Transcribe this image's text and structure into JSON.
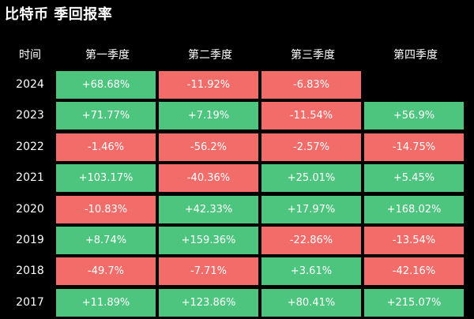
{
  "title": "比特币 季回报率",
  "colors": {
    "positive": "#4dc57f",
    "negative": "#f26c6a",
    "background": "#000000"
  },
  "chart_data": {
    "type": "table",
    "title": "比特币 季回报率",
    "columns": [
      "时间",
      "第一季度",
      "第二季度",
      "第三季度",
      "第四季度"
    ],
    "rows": [
      {
        "year": "2024",
        "values": [
          "+68.68%",
          "-11.92%",
          "-6.83%",
          ""
        ]
      },
      {
        "year": "2023",
        "values": [
          "+71.77%",
          "+7.19%",
          "-11.54%",
          "+56.9%"
        ]
      },
      {
        "year": "2022",
        "values": [
          "-1.46%",
          "-56.2%",
          "-2.57%",
          "-14.75%"
        ]
      },
      {
        "year": "2021",
        "values": [
          "+103.17%",
          "-40.36%",
          "+25.01%",
          "+5.45%"
        ]
      },
      {
        "year": "2020",
        "values": [
          "-10.83%",
          "+42.33%",
          "+17.97%",
          "+168.02%"
        ]
      },
      {
        "year": "2019",
        "values": [
          "+8.74%",
          "+159.36%",
          "-22.86%",
          "-13.54%"
        ]
      },
      {
        "year": "2018",
        "values": [
          "-49.7%",
          "-7.71%",
          "+3.61%",
          "-42.16%"
        ]
      },
      {
        "year": "2017",
        "values": [
          "+11.89%",
          "+123.86%",
          "+80.41%",
          "+215.07%"
        ]
      }
    ]
  }
}
